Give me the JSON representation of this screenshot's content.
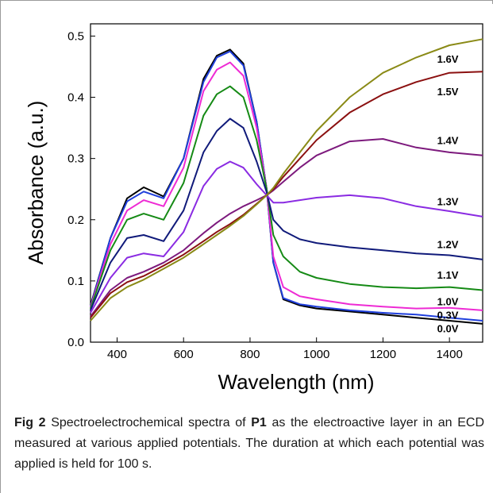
{
  "chart_data": {
    "type": "line",
    "xlabel": "Wavelength (nm)",
    "ylabel": "Absorbance (a.u.)",
    "xlim": [
      320,
      1500
    ],
    "ylim": [
      0.0,
      0.52
    ],
    "xticks": [
      400,
      600,
      800,
      1000,
      1200,
      1400
    ],
    "yticks": [
      0.0,
      0.1,
      0.2,
      0.3,
      0.4,
      0.5
    ],
    "ytick_labels": [
      "0.0",
      "0.1",
      "0.2",
      "0.3",
      "0.4",
      "0.5"
    ],
    "grid": false,
    "series": [
      {
        "name": "0.0V",
        "color": "#000000",
        "x": [
          320,
          380,
          430,
          480,
          540,
          600,
          660,
          700,
          740,
          780,
          820,
          850,
          870,
          900,
          950,
          1000,
          1100,
          1200,
          1300,
          1400,
          1500
        ],
        "y": [
          0.06,
          0.17,
          0.235,
          0.253,
          0.238,
          0.3,
          0.43,
          0.468,
          0.478,
          0.455,
          0.36,
          0.25,
          0.13,
          0.07,
          0.06,
          0.055,
          0.05,
          0.045,
          0.04,
          0.035,
          0.03
        ]
      },
      {
        "name": "0.3V",
        "color": "#1f3fdc",
        "x": [
          320,
          380,
          430,
          480,
          540,
          600,
          660,
          700,
          740,
          780,
          820,
          850,
          870,
          900,
          950,
          1000,
          1100,
          1200,
          1300,
          1400,
          1500
        ],
        "y": [
          0.058,
          0.17,
          0.23,
          0.246,
          0.235,
          0.3,
          0.425,
          0.465,
          0.475,
          0.452,
          0.36,
          0.25,
          0.13,
          0.072,
          0.062,
          0.058,
          0.052,
          0.048,
          0.045,
          0.04,
          0.035
        ]
      },
      {
        "name": "1.0V",
        "color": "#ee2bd4",
        "x": [
          320,
          380,
          430,
          480,
          540,
          600,
          660,
          700,
          740,
          780,
          820,
          850,
          870,
          900,
          950,
          1000,
          1100,
          1200,
          1300,
          1400,
          1500
        ],
        "y": [
          0.057,
          0.16,
          0.215,
          0.232,
          0.222,
          0.285,
          0.41,
          0.445,
          0.457,
          0.435,
          0.35,
          0.25,
          0.14,
          0.09,
          0.075,
          0.07,
          0.062,
          0.058,
          0.055,
          0.056,
          0.052
        ]
      },
      {
        "name": "1.1V",
        "color": "#158a15",
        "x": [
          320,
          380,
          430,
          480,
          540,
          600,
          660,
          700,
          740,
          780,
          820,
          850,
          870,
          900,
          950,
          1000,
          1100,
          1200,
          1300,
          1400,
          1500
        ],
        "y": [
          0.055,
          0.15,
          0.2,
          0.21,
          0.2,
          0.26,
          0.37,
          0.405,
          0.418,
          0.4,
          0.33,
          0.25,
          0.175,
          0.14,
          0.115,
          0.105,
          0.095,
          0.09,
          0.088,
          0.09,
          0.085
        ]
      },
      {
        "name": "1.2V",
        "color": "#101a7a",
        "x": [
          320,
          380,
          430,
          480,
          540,
          600,
          660,
          700,
          740,
          780,
          820,
          850,
          870,
          900,
          950,
          1000,
          1100,
          1200,
          1300,
          1400,
          1500
        ],
        "y": [
          0.052,
          0.13,
          0.17,
          0.175,
          0.165,
          0.215,
          0.31,
          0.345,
          0.365,
          0.35,
          0.295,
          0.245,
          0.2,
          0.182,
          0.168,
          0.162,
          0.155,
          0.15,
          0.145,
          0.142,
          0.135
        ]
      },
      {
        "name": "1.3V",
        "color": "#8a2be2",
        "x": [
          320,
          380,
          430,
          480,
          540,
          600,
          660,
          700,
          740,
          780,
          820,
          850,
          870,
          900,
          950,
          1000,
          1100,
          1200,
          1300,
          1400,
          1500
        ],
        "y": [
          0.048,
          0.105,
          0.138,
          0.145,
          0.14,
          0.18,
          0.255,
          0.283,
          0.295,
          0.285,
          0.258,
          0.24,
          0.228,
          0.228,
          0.232,
          0.236,
          0.24,
          0.235,
          0.222,
          0.214,
          0.205
        ]
      },
      {
        "name": "1.4V",
        "color": "#7d1a7d",
        "x": [
          320,
          380,
          430,
          480,
          540,
          600,
          660,
          700,
          740,
          780,
          820,
          850,
          870,
          900,
          950,
          1000,
          1100,
          1200,
          1300,
          1400,
          1500
        ],
        "y": [
          0.042,
          0.085,
          0.105,
          0.115,
          0.13,
          0.15,
          0.178,
          0.195,
          0.21,
          0.222,
          0.232,
          0.24,
          0.248,
          0.262,
          0.285,
          0.305,
          0.328,
          0.332,
          0.318,
          0.31,
          0.305
        ]
      },
      {
        "name": "1.5V",
        "color": "#8b1010",
        "x": [
          320,
          380,
          430,
          480,
          540,
          600,
          660,
          700,
          740,
          780,
          820,
          850,
          870,
          900,
          950,
          1000,
          1100,
          1200,
          1300,
          1400,
          1500
        ],
        "y": [
          0.04,
          0.08,
          0.098,
          0.108,
          0.125,
          0.143,
          0.165,
          0.18,
          0.193,
          0.208,
          0.226,
          0.24,
          0.25,
          0.27,
          0.3,
          0.33,
          0.375,
          0.405,
          0.425,
          0.44,
          0.442
        ]
      },
      {
        "name": "1.6V",
        "color": "#8a8a16",
        "x": [
          320,
          380,
          430,
          480,
          540,
          600,
          660,
          700,
          740,
          780,
          820,
          850,
          870,
          900,
          950,
          1000,
          1100,
          1200,
          1300,
          1400,
          1500
        ],
        "y": [
          0.035,
          0.072,
          0.09,
          0.102,
          0.12,
          0.138,
          0.16,
          0.175,
          0.19,
          0.206,
          0.225,
          0.24,
          0.252,
          0.275,
          0.31,
          0.345,
          0.4,
          0.44,
          0.465,
          0.485,
          0.495
        ]
      }
    ],
    "annotations": [
      {
        "text": "1.6V",
        "x": 1395,
        "y": 0.463
      },
      {
        "text": "1.5V",
        "x": 1395,
        "y": 0.41
      },
      {
        "text": "1.4V",
        "x": 1395,
        "y": 0.33
      },
      {
        "text": "1.3V",
        "x": 1395,
        "y": 0.23
      },
      {
        "text": "1.2V",
        "x": 1395,
        "y": 0.16
      },
      {
        "text": "1.1V",
        "x": 1395,
        "y": 0.11
      },
      {
        "text": "1.0V",
        "x": 1395,
        "y": 0.067
      },
      {
        "text": "0.3V",
        "x": 1395,
        "y": 0.045
      },
      {
        "text": "0.0V",
        "x": 1395,
        "y": 0.023
      }
    ]
  },
  "caption": {
    "fig_label": "Fig 2",
    "text_before_bold": " Spectroelectrochemical spectra of ",
    "bold_compound": "P1",
    "text_after_bold": " as the electroactive layer in an ECD measured at various applied potentials. The duration at which each potential was applied is held for 100 s."
  }
}
